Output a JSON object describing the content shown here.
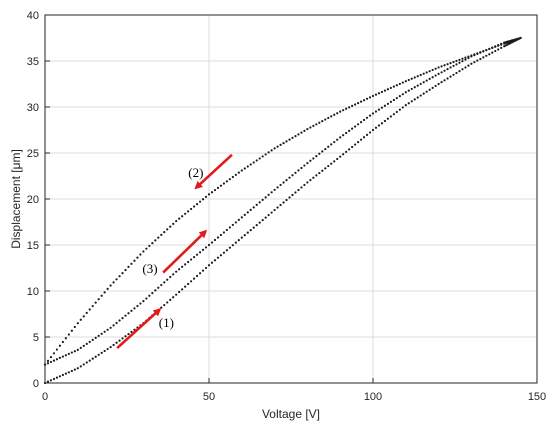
{
  "chart_data": {
    "type": "scatter",
    "xlabel": "Voltage [V]",
    "ylabel": "Displacement [μm]",
    "xlim": [
      0,
      150
    ],
    "ylim": [
      0,
      40
    ],
    "xticks": [
      "0",
      "50",
      "100",
      "150"
    ],
    "yticks": [
      "0",
      "5",
      "10",
      "15",
      "20",
      "25",
      "30",
      "35",
      "40"
    ],
    "grid": true,
    "marker_color": "#1a1a1a",
    "series": [
      {
        "path": "(1)",
        "x": [
          0,
          10,
          20,
          30,
          40,
          50,
          60,
          70,
          80,
          90,
          100,
          110,
          120,
          130,
          140,
          145
        ],
        "y": [
          0,
          1.6,
          3.9,
          6.5,
          9.6,
          12.8,
          15.8,
          18.8,
          21.8,
          24.6,
          27.5,
          30.2,
          32.5,
          34.7,
          36.6,
          37.5
        ]
      },
      {
        "path": "(2)",
        "x": [
          145,
          140,
          130,
          120,
          110,
          100,
          90,
          80,
          70,
          60,
          50,
          40,
          30,
          20,
          10,
          0
        ],
        "y": [
          37.5,
          36.9,
          35.6,
          34.3,
          32.8,
          31.2,
          29.5,
          27.6,
          25.5,
          23.1,
          20.5,
          17.6,
          14.3,
          10.6,
          6.5,
          2.0
        ]
      },
      {
        "path": "(3)",
        "x": [
          0,
          10,
          20,
          30,
          40,
          50,
          60,
          70,
          80,
          90,
          100,
          110,
          120,
          130,
          140,
          145
        ],
        "y": [
          2.0,
          3.6,
          6.0,
          8.9,
          12.1,
          15.0,
          18.0,
          21.0,
          23.9,
          26.7,
          29.3,
          31.6,
          33.6,
          35.5,
          37.0,
          37.5
        ]
      }
    ],
    "annotations": [
      {
        "label": "(1)",
        "arrow_color": "#e31a1c"
      },
      {
        "label": "(2)",
        "arrow_color": "#e31a1c"
      },
      {
        "label": "(3)",
        "arrow_color": "#e31a1c"
      }
    ]
  }
}
